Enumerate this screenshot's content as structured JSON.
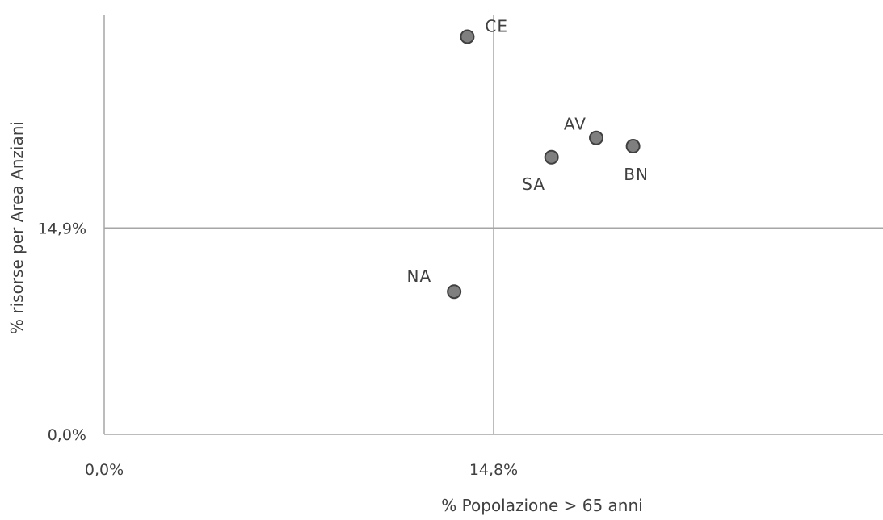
{
  "chart_data": {
    "type": "scatter",
    "title": "",
    "xlabel": "% Popolazione > 65 anni",
    "ylabel": "% risorse per Area Anziani",
    "x_ticks": [
      {
        "value": 0.0,
        "label": "0,0%"
      },
      {
        "value": 14.8,
        "label": "14,8%"
      }
    ],
    "y_ticks": [
      {
        "value": 0.0,
        "label": "0,0%"
      },
      {
        "value": 14.9,
        "label": "14,9%"
      }
    ],
    "xlim": [
      0,
      29.6
    ],
    "ylim": [
      0,
      30.3
    ],
    "reference_lines": {
      "x": 14.8,
      "y": 14.9
    },
    "grid": false,
    "legend": "none",
    "marker_color": "#7f7f7f",
    "marker_edge_color": "#404040",
    "line_color": "#a6a6a6",
    "points": [
      {
        "label": "CE",
        "x": 13.8,
        "y": 28.7
      },
      {
        "label": "AV",
        "x": 18.7,
        "y": 21.4
      },
      {
        "label": "BN",
        "x": 20.1,
        "y": 20.8
      },
      {
        "label": "SA",
        "x": 17.0,
        "y": 20.0
      },
      {
        "label": "NA",
        "x": 13.3,
        "y": 10.3
      }
    ]
  }
}
